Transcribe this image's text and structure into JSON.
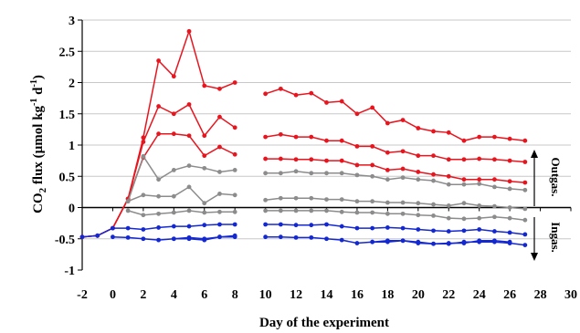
{
  "chart_data": {
    "type": "line",
    "xlabel": "Day of the experiment",
    "ylabel_main": "CO",
    "ylabel_sub": "2",
    "ylabel_rest": " flux (µmol kg",
    "ylabel_sup1": "-1",
    "ylabel_mid": " d",
    "ylabel_sup2": "-1",
    "ylabel_close": ")",
    "xlim": [
      -2,
      30
    ],
    "ylim": [
      -1,
      3
    ],
    "xticks": [
      "-2",
      "0",
      "2",
      "4",
      "6",
      "8",
      "10",
      "12",
      "14",
      "16",
      "18",
      "20",
      "22",
      "24",
      "26",
      "28",
      "30"
    ],
    "yticks": [
      "-1",
      "-0.5",
      "0",
      "0.5",
      "1",
      "1.5",
      "2",
      "2.5",
      "3"
    ],
    "annotations": {
      "outgas": "Outgas.",
      "ingas": "Ingas."
    },
    "colors": {
      "red": "#e8141e",
      "gray": "#8c8c8c",
      "blue": "#1428d2"
    },
    "series": [
      {
        "color": "red",
        "segments": [
          {
            "x": [
              -2,
              -1,
              0,
              1,
              2,
              3,
              4,
              5,
              6,
              7,
              8
            ],
            "y": [
              -0.47,
              -0.45,
              -0.33,
              0.14,
              1.12,
              2.35,
              2.1,
              2.82,
              1.95,
              1.9,
              2.0
            ]
          },
          {
            "x": [
              10,
              11,
              12,
              13,
              14,
              15,
              16,
              17,
              18,
              19,
              20,
              21,
              22,
              23,
              24,
              25,
              26,
              27
            ],
            "y": [
              1.82,
              1.9,
              1.8,
              1.83,
              1.68,
              1.7,
              1.5,
              1.6,
              1.35,
              1.4,
              1.27,
              1.22,
              1.2,
              1.07,
              1.13,
              1.13,
              1.1,
              1.07
            ]
          }
        ]
      },
      {
        "color": "red",
        "segments": [
          {
            "x": [
              -2,
              -1,
              0,
              1,
              2,
              3,
              4,
              5,
              6,
              7,
              8
            ],
            "y": [
              -0.47,
              -0.45,
              -0.33,
              0.14,
              1.05,
              1.62,
              1.5,
              1.65,
              1.15,
              1.45,
              1.28
            ]
          },
          {
            "x": [
              10,
              11,
              12,
              13,
              14,
              15,
              16,
              17,
              18,
              19,
              20,
              21,
              22,
              23,
              24,
              25,
              26,
              27
            ],
            "y": [
              1.13,
              1.17,
              1.13,
              1.13,
              1.07,
              1.07,
              0.98,
              0.98,
              0.88,
              0.9,
              0.83,
              0.83,
              0.77,
              0.77,
              0.78,
              0.77,
              0.75,
              0.73
            ]
          }
        ]
      },
      {
        "color": "red",
        "segments": [
          {
            "x": [
              0,
              1,
              2,
              3,
              4,
              5,
              6,
              7,
              8
            ],
            "y": [
              -0.33,
              0.14,
              0.8,
              1.18,
              1.18,
              1.15,
              0.83,
              0.97,
              0.85
            ]
          },
          {
            "x": [
              10,
              11,
              12,
              13,
              14,
              15,
              16,
              17,
              18,
              19,
              20,
              21,
              22,
              23,
              24,
              25,
              26,
              27
            ],
            "y": [
              0.78,
              0.78,
              0.77,
              0.77,
              0.75,
              0.75,
              0.68,
              0.68,
              0.6,
              0.62,
              0.57,
              0.53,
              0.5,
              0.45,
              0.45,
              0.45,
              0.42,
              0.4
            ]
          }
        ]
      },
      {
        "color": "gray",
        "segments": [
          {
            "x": [
              1,
              2,
              3,
              4,
              5,
              6,
              7,
              8
            ],
            "y": [
              0.1,
              0.82,
              0.45,
              0.6,
              0.67,
              0.63,
              0.57,
              0.6
            ]
          },
          {
            "x": [
              10,
              11,
              12,
              13,
              14,
              15,
              16,
              17,
              18,
              19,
              20,
              21,
              22,
              23,
              24,
              25,
              26,
              27
            ],
            "y": [
              0.55,
              0.55,
              0.58,
              0.55,
              0.55,
              0.55,
              0.52,
              0.5,
              0.45,
              0.48,
              0.45,
              0.43,
              0.37,
              0.37,
              0.38,
              0.33,
              0.3,
              0.28
            ]
          }
        ]
      },
      {
        "color": "gray",
        "segments": [
          {
            "x": [
              1,
              2,
              3,
              4,
              5,
              6,
              7,
              8
            ],
            "y": [
              0.1,
              0.2,
              0.18,
              0.18,
              0.33,
              0.07,
              0.22,
              0.2
            ]
          },
          {
            "x": [
              10,
              11,
              12,
              13,
              14,
              15,
              16,
              17,
              18,
              19,
              20,
              21,
              22,
              23,
              24,
              25,
              26,
              27
            ],
            "y": [
              0.12,
              0.15,
              0.15,
              0.15,
              0.13,
              0.13,
              0.1,
              0.1,
              0.08,
              0.08,
              0.07,
              0.05,
              0.03,
              0.07,
              0.03,
              0.02,
              0.0,
              -0.02
            ]
          }
        ]
      },
      {
        "color": "gray",
        "segments": [
          {
            "x": [
              1,
              2,
              3,
              4,
              5,
              6,
              7,
              8
            ],
            "y": [
              -0.05,
              -0.12,
              -0.1,
              -0.08,
              -0.05,
              -0.08,
              -0.07,
              -0.07
            ]
          },
          {
            "x": [
              10,
              11,
              12,
              13,
              14,
              15,
              16,
              17,
              18,
              19,
              20,
              21,
              22,
              23,
              24,
              25,
              26,
              27
            ],
            "y": [
              -0.05,
              -0.05,
              -0.05,
              -0.05,
              -0.05,
              -0.07,
              -0.08,
              -0.08,
              -0.1,
              -0.1,
              -0.12,
              -0.13,
              -0.17,
              -0.18,
              -0.17,
              -0.15,
              -0.17,
              -0.2
            ]
          }
        ]
      },
      {
        "color": "blue",
        "segments": [
          {
            "x": [
              -2,
              -1,
              0,
              1,
              2,
              3,
              4,
              5,
              6,
              7,
              8
            ],
            "y": [
              -0.47,
              -0.45,
              -0.33,
              -0.33,
              -0.35,
              -0.32,
              -0.3,
              -0.3,
              -0.28,
              -0.27,
              -0.27
            ]
          },
          {
            "x": [
              10,
              11,
              12,
              13,
              14,
              15,
              16,
              17,
              18,
              19,
              20,
              21,
              22,
              23,
              24,
              25,
              26,
              27
            ],
            "y": [
              -0.27,
              -0.27,
              -0.28,
              -0.28,
              -0.27,
              -0.3,
              -0.33,
              -0.33,
              -0.32,
              -0.33,
              -0.35,
              -0.37,
              -0.38,
              -0.37,
              -0.35,
              -0.38,
              -0.4,
              -0.43
            ]
          }
        ]
      },
      {
        "color": "blue",
        "segments": [
          {
            "x": [
              0,
              1,
              2,
              3,
              4,
              5,
              6,
              7,
              8
            ],
            "y": [
              -0.47,
              -0.48,
              -0.5,
              -0.52,
              -0.5,
              -0.48,
              -0.5,
              -0.47,
              -0.47
            ]
          },
          {
            "x": [
              10,
              11,
              12,
              13,
              14,
              15,
              16,
              17,
              18,
              19,
              20,
              21,
              22,
              23,
              24,
              25,
              26,
              27
            ],
            "y": [
              -0.47,
              -0.47,
              -0.48,
              -0.48,
              -0.5,
              -0.52,
              -0.57,
              -0.55,
              -0.55,
              -0.53,
              -0.57,
              -0.58,
              -0.58,
              -0.55,
              -0.55,
              -0.55,
              -0.57,
              -0.6
            ]
          }
        ]
      },
      {
        "color": "blue",
        "segments": [
          {
            "x": [
              4,
              5,
              6,
              7,
              8
            ],
            "y": [
              -0.5,
              -0.5,
              -0.52,
              -0.47,
              -0.45
            ]
          },
          {
            "x": [
              17,
              18,
              19,
              20,
              21,
              22,
              23,
              24,
              25,
              26
            ],
            "y": [
              -0.55,
              -0.53,
              -0.53,
              -0.55,
              -0.58,
              -0.57,
              -0.57,
              -0.53,
              -0.53,
              -0.55
            ]
          }
        ]
      }
    ]
  }
}
